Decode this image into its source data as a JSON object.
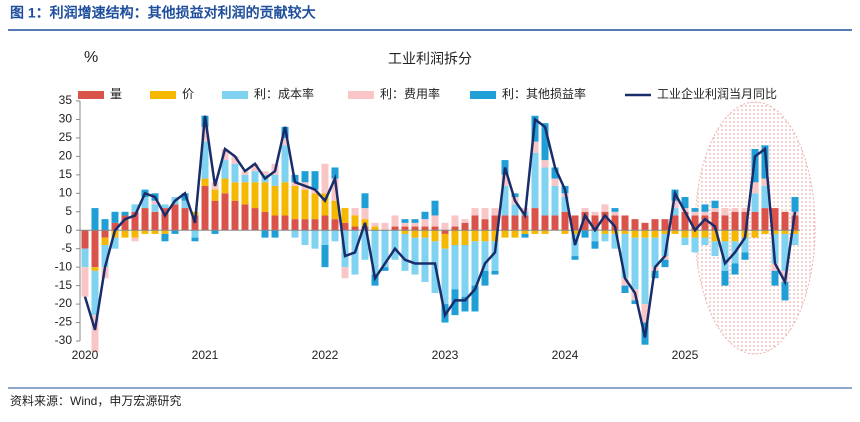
{
  "header": {
    "title": "图 1：利润增速结构：其他损益对利润的贡献较大"
  },
  "footer": {
    "source": "资料来源：Wind，申万宏源研究"
  },
  "chart_data": {
    "type": "bar",
    "title": "工业利润拆分",
    "y_label": "%",
    "categories": [
      "2020",
      null,
      null,
      null,
      null,
      null,
      null,
      null,
      null,
      null,
      null,
      null,
      "2021",
      null,
      null,
      null,
      null,
      null,
      null,
      null,
      null,
      null,
      null,
      null,
      "2022",
      null,
      null,
      null,
      null,
      null,
      null,
      null,
      null,
      null,
      null,
      null,
      "2023",
      null,
      null,
      null,
      null,
      null,
      null,
      null,
      null,
      null,
      null,
      null,
      "2024",
      null,
      null,
      null,
      null,
      null,
      null,
      null,
      null,
      null,
      null,
      null,
      "2025",
      null,
      null,
      null,
      null,
      null,
      null,
      null,
      null,
      null,
      null,
      null
    ],
    "ylim": [
      -30,
      35
    ],
    "yticks": [
      -30,
      -25,
      -20,
      -15,
      -10,
      -5,
      0,
      5,
      10,
      15,
      20,
      25,
      30,
      35
    ],
    "series": [
      {
        "name": "量",
        "color": "#d9534b",
        "values": [
          -5,
          -10,
          -2,
          2,
          4,
          5,
          6,
          5,
          6,
          7,
          6,
          4,
          12,
          8,
          10,
          8,
          7,
          6,
          5,
          4,
          4,
          3,
          3,
          3,
          4,
          3,
          2,
          1,
          1,
          0,
          0,
          1,
          1,
          1,
          1,
          1,
          -1,
          1,
          2,
          4,
          3,
          4,
          4,
          4,
          4,
          6,
          4,
          4,
          5,
          4,
          5,
          4,
          5,
          4,
          4,
          3,
          2,
          3,
          3,
          4,
          5,
          4,
          4,
          5,
          4,
          5,
          5,
          5,
          6,
          6,
          5,
          4
        ]
      },
      {
        "name": "价",
        "color": "#f5b800",
        "values": [
          0,
          -1,
          -2,
          -2,
          -2,
          -2,
          -1,
          -1,
          -1,
          0,
          0,
          1,
          2,
          3,
          4,
          5,
          6,
          7,
          8,
          8,
          9,
          9,
          8,
          7,
          6,
          5,
          4,
          3,
          2,
          1,
          0,
          0,
          -1,
          -2,
          -2,
          -3,
          -4,
          -4,
          -4,
          -3,
          -3,
          -3,
          -2,
          -2,
          -1,
          -1,
          -1,
          0,
          -1,
          -1,
          0,
          0,
          -1,
          -1,
          -1,
          -2,
          -2,
          -2,
          -1,
          -1,
          -2,
          -2,
          -2,
          -3,
          -3,
          -3,
          -2,
          -2,
          -1,
          -1,
          -1,
          -1
        ]
      },
      {
        "name": "利：成本率",
        "color": "#7fd3f0",
        "values": [
          -5,
          -12,
          -6,
          -3,
          0,
          2,
          3,
          2,
          1,
          2,
          2,
          -2,
          10,
          0,
          5,
          5,
          2,
          3,
          2,
          3,
          10,
          -2,
          -4,
          -5,
          -4,
          -3,
          -10,
          -12,
          -8,
          -12,
          -10,
          -8,
          -10,
          -10,
          -12,
          -14,
          -15,
          -12,
          -14,
          -12,
          -8,
          -8,
          8,
          3,
          1,
          15,
          13,
          8,
          4,
          -6,
          0,
          -3,
          -2,
          -4,
          -12,
          -14,
          -18,
          -8,
          -6,
          2,
          -2,
          -4,
          -2,
          -4,
          -8,
          -6,
          -4,
          5,
          6,
          -8,
          -10,
          -3
        ]
      },
      {
        "name": "利：费用率",
        "color": "#f8c6c6",
        "values": [
          -8,
          -10,
          -3,
          0,
          0,
          -1,
          0,
          1,
          0,
          0,
          0,
          0,
          4,
          2,
          3,
          2,
          1,
          2,
          1,
          3,
          2,
          1,
          2,
          1,
          8,
          6,
          -3,
          2,
          3,
          1,
          2,
          3,
          1,
          1,
          2,
          3,
          2,
          3,
          1,
          2,
          3,
          2,
          3,
          2,
          1,
          3,
          2,
          2,
          1,
          0,
          1,
          1,
          2,
          1,
          -2,
          -3,
          -5,
          -1,
          -1,
          2,
          1,
          1,
          1,
          1,
          2,
          1,
          1,
          3,
          2,
          -2,
          -3,
          1
        ]
      },
      {
        "name": "利：其他损益率",
        "color": "#1f9fd6",
        "values": [
          0,
          6,
          3,
          3,
          1,
          0,
          2,
          2,
          -2,
          -1,
          2,
          -1,
          3,
          -1,
          0,
          0,
          0,
          0,
          -2,
          -2,
          3,
          2,
          3,
          5,
          -6,
          3,
          0,
          0,
          4,
          -3,
          -1,
          0,
          1,
          1,
          2,
          4,
          -5,
          -7,
          -4,
          -7,
          -4,
          -1,
          4,
          1,
          -1,
          7,
          10,
          3,
          2,
          -1,
          -2,
          -2,
          0,
          1,
          -2,
          -1,
          -6,
          -2,
          -2,
          3,
          3,
          1,
          2,
          2,
          -4,
          -3,
          -2,
          9,
          9,
          -4,
          -5,
          4
        ]
      },
      {
        "name": "工业企业利润当月同比",
        "color": "#1a2d6b",
        "type": "line",
        "values": [
          -18,
          -27,
          -10,
          0,
          3,
          4,
          10,
          9,
          4,
          8,
          10,
          2,
          31,
          12,
          22,
          20,
          16,
          18,
          14,
          16,
          28,
          13,
          12,
          11,
          8,
          14,
          -7,
          -6,
          2,
          -13,
          -9,
          -5,
          -8,
          -9,
          -9,
          -9,
          -23,
          -19,
          -19,
          -16,
          -9,
          -6,
          17,
          8,
          4,
          30,
          28,
          17,
          11,
          -4,
          4,
          0,
          4,
          1,
          -13,
          -17,
          -29,
          -10,
          -7,
          10,
          5,
          0,
          3,
          1,
          -9,
          -6,
          -2,
          20,
          22,
          -9,
          -14,
          5
        ]
      }
    ]
  }
}
